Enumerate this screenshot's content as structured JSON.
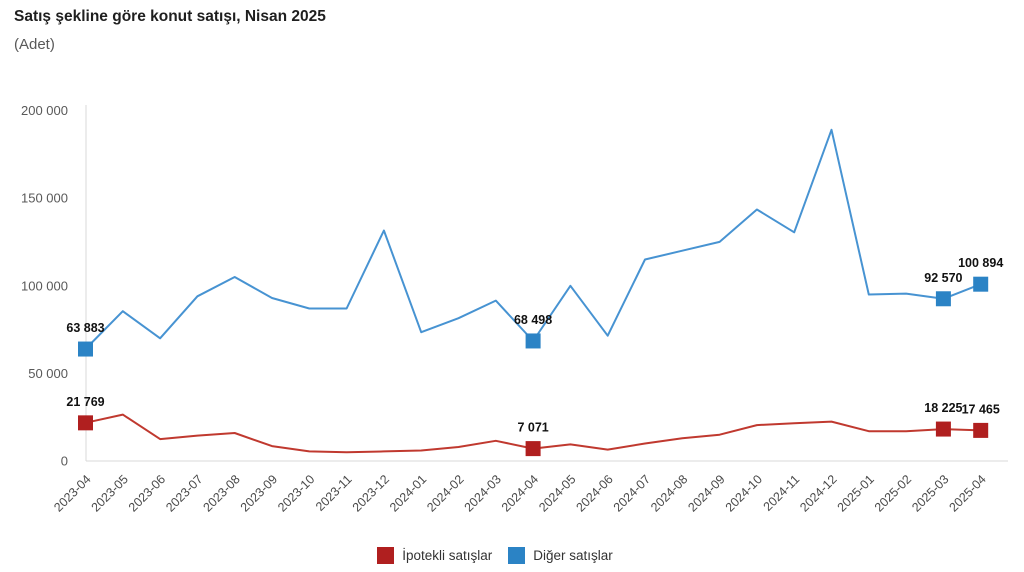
{
  "header": {
    "title": "Satış şekline göre konut satışı, Nisan 2025",
    "subtitle": "(Adet)"
  },
  "colors": {
    "mortgaged_marker": "#b01f1f",
    "mortgaged_line": "#c0392f",
    "other_marker": "#2b83c5",
    "other_line": "#4793d2",
    "axis_line": "#d9d9d9",
    "tick_text": "#595959",
    "data_label_text": "#111111"
  },
  "legend": [
    {
      "label": "İpotekli satışlar",
      "color": "#b01f1f"
    },
    {
      "label": "Diğer satışlar",
      "color": "#2b83c5"
    }
  ],
  "chart_data": {
    "type": "line",
    "title": "Satış şekline göre konut satışı, Nisan 2025",
    "subtitle": "(Adet)",
    "x": [
      "2023-04",
      "2023-05",
      "2023-06",
      "2023-07",
      "2023-08",
      "2023-09",
      "2023-10",
      "2023-11",
      "2023-12",
      "2024-01",
      "2024-02",
      "2024-03",
      "2024-04",
      "2024-05",
      "2024-06",
      "2024-07",
      "2024-08",
      "2024-09",
      "2024-10",
      "2024-11",
      "2024-12",
      "2025-01",
      "2025-02",
      "2025-03",
      "2025-04"
    ],
    "series": [
      {
        "name": "İpotekli satışlar",
        "marker_color": "#b01f1f",
        "line_color": "#c0392f",
        "values": [
          21769,
          26500,
          12500,
          14500,
          16000,
          8500,
          5500,
          5000,
          5500,
          6000,
          8000,
          11500,
          7071,
          9500,
          6500,
          10000,
          13000,
          15000,
          20500,
          21500,
          22500,
          17000,
          17000,
          18225,
          17465
        ],
        "labeled_points": [
          {
            "index": 0,
            "label": "21 769"
          },
          {
            "index": 12,
            "label": "7 071"
          },
          {
            "index": 23,
            "label": "18 225"
          },
          {
            "index": 24,
            "label": "17 465"
          }
        ]
      },
      {
        "name": "Diğer satışlar",
        "marker_color": "#2b83c5",
        "line_color": "#4793d2",
        "values": [
          63883,
          85500,
          70000,
          94000,
          105000,
          93000,
          87000,
          87000,
          131500,
          73500,
          81500,
          91500,
          68498,
          100000,
          71500,
          115000,
          120000,
          125000,
          143500,
          130500,
          189000,
          95000,
          95500,
          92570,
          100894
        ],
        "labeled_points": [
          {
            "index": 0,
            "label": "63 883"
          },
          {
            "index": 12,
            "label": "68 498"
          },
          {
            "index": 23,
            "label": "92 570"
          },
          {
            "index": 24,
            "label": "100 894"
          }
        ]
      }
    ],
    "ylim": [
      0,
      200000
    ],
    "yticks": [
      {
        "value": 0,
        "label": "0"
      },
      {
        "value": 50000,
        "label": "50 000"
      },
      {
        "value": 100000,
        "label": "100 000"
      },
      {
        "value": 150000,
        "label": "150 000"
      },
      {
        "value": 200000,
        "label": "200 000"
      }
    ],
    "grid": false,
    "legend_position": "bottom",
    "x_label_rotation": -45
  }
}
